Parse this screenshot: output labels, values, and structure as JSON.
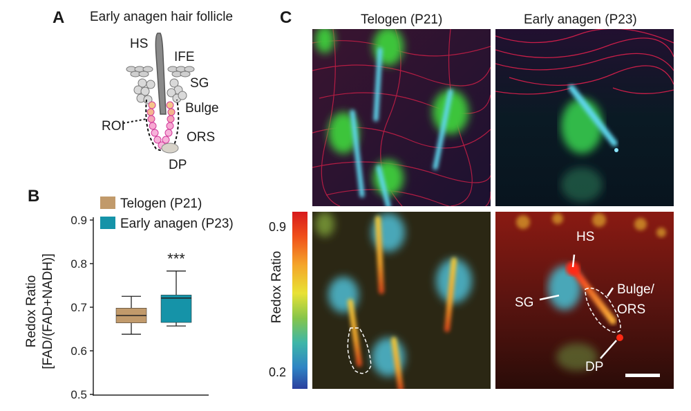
{
  "panels": {
    "a": {
      "letter": "A",
      "title": "Early anagen hair follicle",
      "labels": {
        "hs": "HS",
        "ife": "IFE",
        "sg": "SG",
        "bulge": "Bulge",
        "roi": "ROI",
        "ors": "ORS",
        "dp": "DP"
      }
    },
    "b": {
      "letter": "B",
      "legend": [
        {
          "name": "Telogen (P21)",
          "color": "#c19a6b"
        },
        {
          "name": "Early anagen (P23)",
          "color": "#1593a8"
        }
      ],
      "significance": "***",
      "ylabel_line1": "Redox Ratio",
      "ylabel_line2": "[FAD/(FAD+NADH)]"
    },
    "c": {
      "letter": "C",
      "col_titles": [
        "Telogen (P21)",
        "Early anagen (P23)"
      ],
      "colorbar_label": "Redox Ratio",
      "colorbar_ticks": [
        "0.9",
        "0.2"
      ],
      "annotations": {
        "hs": "HS",
        "sg": "SG",
        "bulge": "Bulge/",
        "ors": "ORS",
        "dp": "DP"
      }
    }
  },
  "chart_data": {
    "type": "box",
    "categories": [
      "Telogen (P21)",
      "Early anagen (P23)"
    ],
    "ylabel": "Redox Ratio [FAD/(FAD+NADH)]",
    "ylim": [
      0.5,
      0.9
    ],
    "yticks": [
      "0.5",
      "0.6",
      "0.7",
      "0.8",
      "0.9"
    ],
    "boxes": [
      {
        "name": "Telogen (P21)",
        "whisker_low": 0.638,
        "q1": 0.664,
        "median": 0.681,
        "q3": 0.698,
        "whisker_high": 0.725,
        "color": "#c19a6b"
      },
      {
        "name": "Early anagen (P23)",
        "whisker_low": 0.657,
        "q1": 0.665,
        "median": 0.721,
        "q3": 0.728,
        "whisker_high": 0.783,
        "color": "#1593a8"
      }
    ],
    "annotation": "***"
  }
}
